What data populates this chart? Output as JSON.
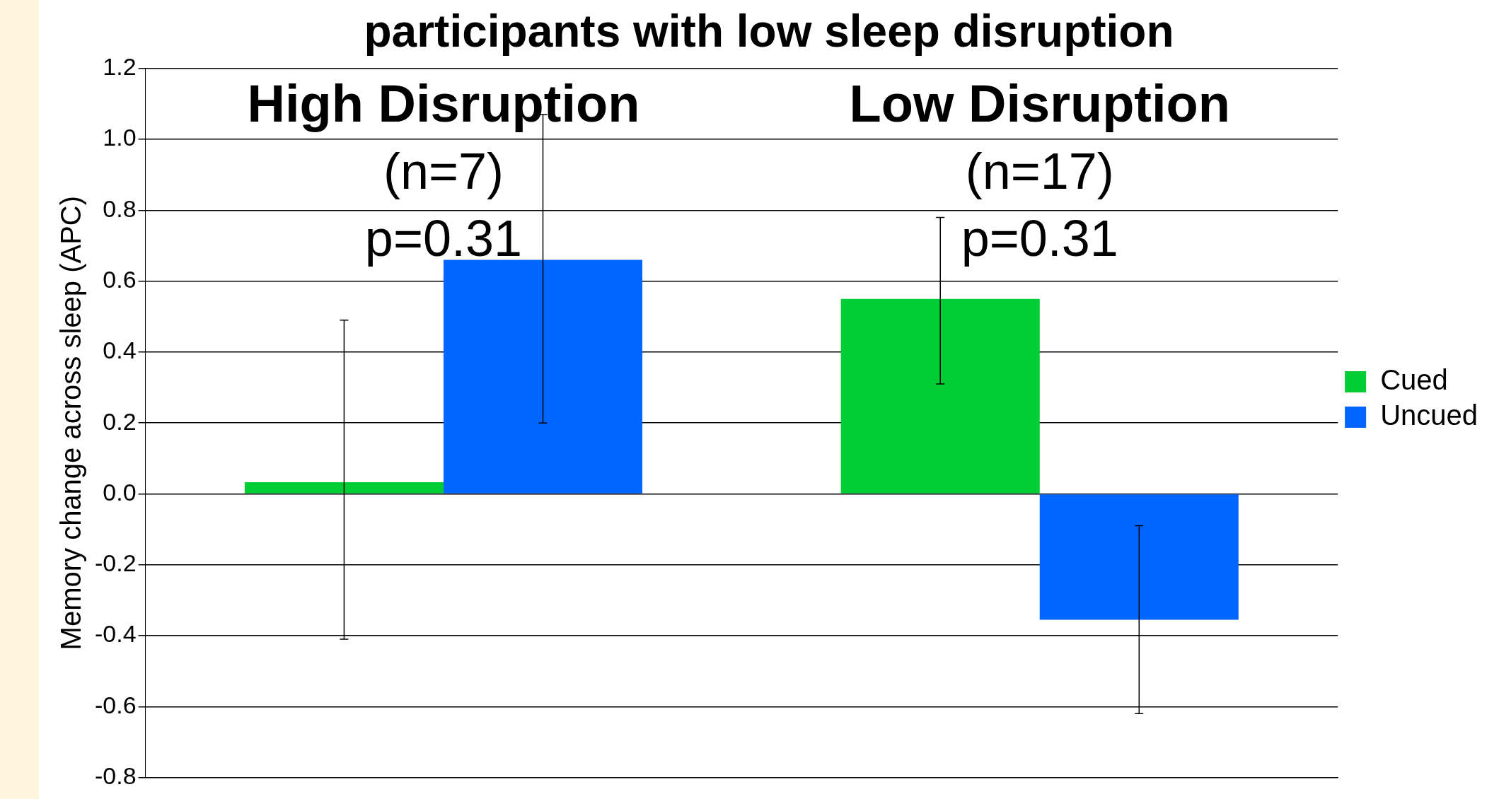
{
  "chart_data": {
    "type": "bar",
    "title": "participants with low sleep disruption",
    "ylabel": "Memory change across sleep (APC)",
    "categories": [
      null,
      null
    ],
    "series": [
      {
        "name": "Cued",
        "color": "#00cc33",
        "values": [
          0.033,
          0.55
        ],
        "errors": [
          [
            -0.41,
            0.49
          ],
          [
            0.31,
            0.78
          ]
        ]
      },
      {
        "name": "Uncued",
        "color": "#0066ff",
        "values": [
          0.66,
          -0.355
        ],
        "errors": [
          [
            0.2,
            1.07
          ],
          [
            -0.62,
            -0.09
          ]
        ]
      }
    ],
    "ylim": [
      -0.8,
      1.2
    ],
    "yticks": [
      {
        "value": -0.8,
        "label": "-0.8"
      },
      {
        "value": -0.6,
        "label": "-0.6"
      },
      {
        "value": -0.4,
        "label": "-0.4"
      },
      {
        "value": -0.2,
        "label": "-0.2"
      },
      {
        "value": 0,
        "label": "0.0"
      },
      {
        "value": 0.2,
        "label": "0.2"
      },
      {
        "value": 0.4,
        "label": "0.4"
      },
      {
        "value": 0.6,
        "label": "0.6"
      },
      {
        "value": 0.8,
        "label": "0.8"
      },
      {
        "value": 1,
        "label": "1.0"
      },
      {
        "value": 1.2,
        "label": "1.2"
      }
    ],
    "grid": "y",
    "legend": "right",
    "annotations": [
      "High Disruption",
      "(n=7)",
      "p=0.31",
      "Low Disruption",
      "(n=17)",
      "p=0.31"
    ]
  }
}
